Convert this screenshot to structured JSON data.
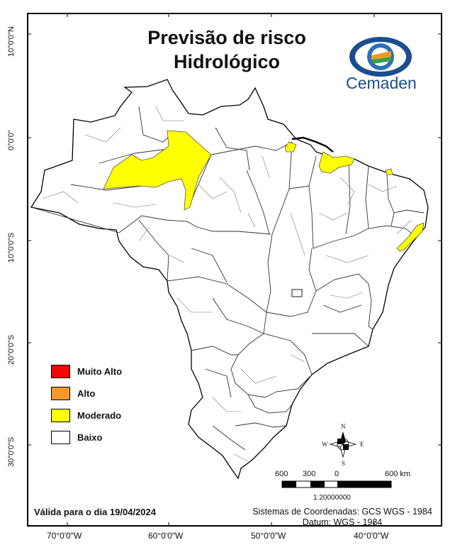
{
  "title_line1": "Previsão de risco",
  "title_line2": "Hidrológico",
  "logo": {
    "text": "Cemaden",
    "icon": "cemaden-eye-logo"
  },
  "legend": [
    {
      "label": "Muito Alto",
      "color": "#ff0000"
    },
    {
      "label": "Alto",
      "color": "#f5982a"
    },
    {
      "label": "Moderado",
      "color": "#ffff00"
    },
    {
      "label": "Baixo",
      "color": "#ffffff"
    }
  ],
  "validity": "Válida para o dia 19/04/2024",
  "coordinate_system": "Sistemas de Coordenadas: GCS WGS - 1984",
  "datum": "Datum: WGS - 1984",
  "lat_labels": [
    "10°0'0\"N",
    "0°0'0\"",
    "10°0'0\"S",
    "20°0'0\"S",
    "30°0'0\"S"
  ],
  "lon_labels": [
    "70°0'0\"W",
    "60°0'0\"W",
    "50°0'0\"W",
    "40°0'0\"W"
  ],
  "scale_bar": {
    "labels": [
      "600",
      "300",
      "0",
      "600 km"
    ],
    "ratio": "1:20000000"
  },
  "compass": {
    "n": "N",
    "s": "S",
    "e": "E",
    "w": "W"
  },
  "colors": {
    "border": "#000000",
    "land": "#ffffff",
    "moderate": "#ffff00",
    "logo_blue": "#1a4e8f"
  }
}
